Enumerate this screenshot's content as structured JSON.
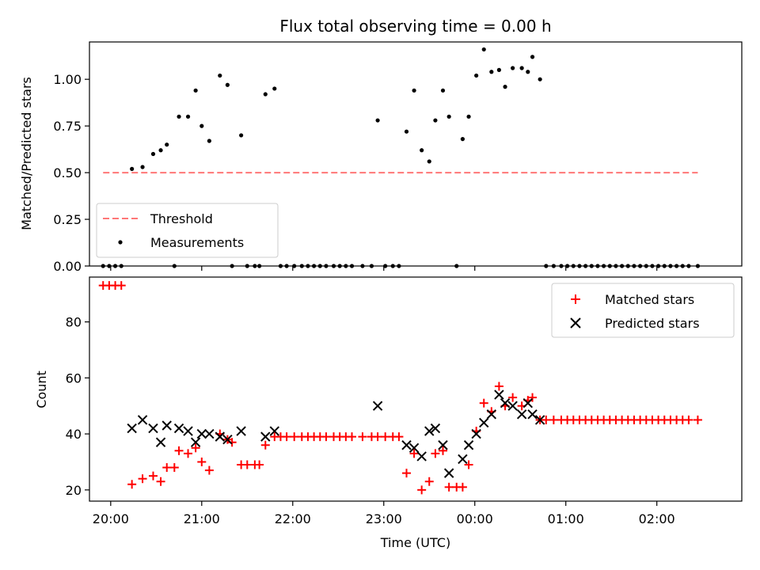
{
  "chart_data": [
    {
      "type": "scatter",
      "title": "Flux total observing time = 0.00 h",
      "ylabel": "Matched/Predicted stars",
      "ylim": [
        0,
        1.2
      ],
      "yticks": [
        0.0,
        0.25,
        0.5,
        0.75,
        1.0
      ],
      "ytick_labels": [
        "0.00",
        "0.25",
        "0.50",
        "0.75",
        "1.00"
      ],
      "xlim": [
        "19:46",
        "02:56"
      ],
      "x_unit": "Time (UTC)",
      "legend_position": "lower-left",
      "threshold": {
        "name": "Threshold",
        "y": 0.5,
        "x_range": [
          "19:55",
          "02:27"
        ],
        "color": "#ff7777",
        "style": "dashed"
      },
      "series": [
        {
          "name": "Measurements",
          "marker": "dot",
          "color": "#000000",
          "points": [
            [
              "19:55",
              0.0
            ],
            [
              "19:59",
              0.0
            ],
            [
              "20:03",
              0.0
            ],
            [
              "20:07",
              0.0
            ],
            [
              "20:14",
              0.52
            ],
            [
              "20:21",
              0.53
            ],
            [
              "20:28",
              0.6
            ],
            [
              "20:33",
              0.62
            ],
            [
              "20:37",
              0.65
            ],
            [
              "20:42",
              0.0
            ],
            [
              "20:45",
              0.8
            ],
            [
              "20:51",
              0.8
            ],
            [
              "20:56",
              0.94
            ],
            [
              "21:00",
              0.75
            ],
            [
              "21:05",
              0.67
            ],
            [
              "21:12",
              1.02
            ],
            [
              "21:17",
              0.97
            ],
            [
              "21:20",
              0.0
            ],
            [
              "21:26",
              0.7
            ],
            [
              "21:30",
              0.0
            ],
            [
              "21:35",
              0.0
            ],
            [
              "21:38",
              0.0
            ],
            [
              "21:42",
              0.92
            ],
            [
              "21:48",
              0.95
            ],
            [
              "21:52",
              0.0
            ],
            [
              "21:56",
              0.0
            ],
            [
              "22:01",
              0.0
            ],
            [
              "22:06",
              0.0
            ],
            [
              "22:10",
              0.0
            ],
            [
              "22:14",
              0.0
            ],
            [
              "22:18",
              0.0
            ],
            [
              "22:22",
              0.0
            ],
            [
              "22:27",
              0.0
            ],
            [
              "22:31",
              0.0
            ],
            [
              "22:35",
              0.0
            ],
            [
              "22:39",
              0.0
            ],
            [
              "22:46",
              0.0
            ],
            [
              "22:52",
              0.0
            ],
            [
              "22:56",
              0.78
            ],
            [
              "23:01",
              0.0
            ],
            [
              "23:06",
              0.0
            ],
            [
              "23:10",
              0.0
            ],
            [
              "23:15",
              0.72
            ],
            [
              "23:20",
              0.94
            ],
            [
              "23:25",
              0.62
            ],
            [
              "23:30",
              0.56
            ],
            [
              "23:34",
              0.78
            ],
            [
              "23:39",
              0.94
            ],
            [
              "23:43",
              0.8
            ],
            [
              "23:48",
              0.0
            ],
            [
              "23:52",
              0.68
            ],
            [
              "23:56",
              0.8
            ],
            [
              "00:01",
              1.02
            ],
            [
              "00:06",
              1.16
            ],
            [
              "00:11",
              1.04
            ],
            [
              "00:16",
              1.05
            ],
            [
              "00:20",
              0.96
            ],
            [
              "00:25",
              1.06
            ],
            [
              "00:31",
              1.06
            ],
            [
              "00:35",
              1.04
            ],
            [
              "00:38",
              1.12
            ],
            [
              "00:43",
              1.0
            ],
            [
              "00:47",
              0.0
            ],
            [
              "00:52",
              0.0
            ],
            [
              "00:57",
              0.0
            ],
            [
              "01:01",
              0.0
            ],
            [
              "01:05",
              0.0
            ],
            [
              "01:09",
              0.0
            ],
            [
              "01:13",
              0.0
            ],
            [
              "01:17",
              0.0
            ],
            [
              "01:21",
              0.0
            ],
            [
              "01:25",
              0.0
            ],
            [
              "01:29",
              0.0
            ],
            [
              "01:33",
              0.0
            ],
            [
              "01:37",
              0.0
            ],
            [
              "01:41",
              0.0
            ],
            [
              "01:45",
              0.0
            ],
            [
              "01:49",
              0.0
            ],
            [
              "01:53",
              0.0
            ],
            [
              "01:57",
              0.0
            ],
            [
              "02:01",
              0.0
            ],
            [
              "02:05",
              0.0
            ],
            [
              "02:09",
              0.0
            ],
            [
              "02:13",
              0.0
            ],
            [
              "02:17",
              0.0
            ],
            [
              "02:21",
              0.0
            ],
            [
              "02:27",
              0.0
            ]
          ]
        }
      ]
    },
    {
      "type": "scatter",
      "ylabel": "Count",
      "xlabel": "Time (UTC)",
      "ylim": [
        16,
        96
      ],
      "yticks": [
        20,
        40,
        60,
        80
      ],
      "ytick_labels": [
        "20",
        "40",
        "60",
        "80"
      ],
      "xlim": [
        "19:46",
        "02:56"
      ],
      "xticks": [
        "20:00",
        "21:00",
        "22:00",
        "23:00",
        "00:00",
        "01:00",
        "02:00"
      ],
      "xtick_labels": [
        "20:00",
        "21:00",
        "22:00",
        "23:00",
        "00:00",
        "01:00",
        "02:00"
      ],
      "legend_position": "top-right",
      "series": [
        {
          "name": "Matched stars",
          "marker": "plus",
          "color": "#ff0000",
          "points": [
            [
              "19:55",
              93
            ],
            [
              "19:59",
              93
            ],
            [
              "20:03",
              93
            ],
            [
              "20:07",
              93
            ],
            [
              "20:14",
              22
            ],
            [
              "20:21",
              24
            ],
            [
              "20:28",
              25
            ],
            [
              "20:33",
              23
            ],
            [
              "20:37",
              28
            ],
            [
              "20:42",
              28
            ],
            [
              "20:45",
              34
            ],
            [
              "20:51",
              33
            ],
            [
              "20:56",
              35
            ],
            [
              "21:00",
              30
            ],
            [
              "21:05",
              27
            ],
            [
              "21:12",
              40
            ],
            [
              "21:17",
              38
            ],
            [
              "21:20",
              37
            ],
            [
              "21:26",
              29
            ],
            [
              "21:30",
              29
            ],
            [
              "21:35",
              29
            ],
            [
              "21:38",
              29
            ],
            [
              "21:42",
              36
            ],
            [
              "21:48",
              39
            ],
            [
              "21:52",
              39
            ],
            [
              "21:56",
              39
            ],
            [
              "22:01",
              39
            ],
            [
              "22:06",
              39
            ],
            [
              "22:10",
              39
            ],
            [
              "22:14",
              39
            ],
            [
              "22:18",
              39
            ],
            [
              "22:22",
              39
            ],
            [
              "22:27",
              39
            ],
            [
              "22:31",
              39
            ],
            [
              "22:35",
              39
            ],
            [
              "22:39",
              39
            ],
            [
              "22:46",
              39
            ],
            [
              "22:52",
              39
            ],
            [
              "22:56",
              39
            ],
            [
              "23:01",
              39
            ],
            [
              "23:06",
              39
            ],
            [
              "23:10",
              39
            ],
            [
              "23:15",
              26
            ],
            [
              "23:20",
              33
            ],
            [
              "23:25",
              20
            ],
            [
              "23:30",
              23
            ],
            [
              "23:34",
              33
            ],
            [
              "23:39",
              34
            ],
            [
              "23:43",
              21
            ],
            [
              "23:48",
              21
            ],
            [
              "23:52",
              21
            ],
            [
              "23:56",
              29
            ],
            [
              "00:01",
              41
            ],
            [
              "00:06",
              51
            ],
            [
              "00:11",
              48
            ],
            [
              "00:16",
              57
            ],
            [
              "00:20",
              50
            ],
            [
              "00:25",
              53
            ],
            [
              "00:31",
              50
            ],
            [
              "00:35",
              52
            ],
            [
              "00:38",
              53
            ],
            [
              "00:43",
              45
            ],
            [
              "00:47",
              45
            ],
            [
              "00:52",
              45
            ],
            [
              "00:57",
              45
            ],
            [
              "01:01",
              45
            ],
            [
              "01:05",
              45
            ],
            [
              "01:09",
              45
            ],
            [
              "01:13",
              45
            ],
            [
              "01:17",
              45
            ],
            [
              "01:21",
              45
            ],
            [
              "01:25",
              45
            ],
            [
              "01:29",
              45
            ],
            [
              "01:33",
              45
            ],
            [
              "01:37",
              45
            ],
            [
              "01:41",
              45
            ],
            [
              "01:45",
              45
            ],
            [
              "01:49",
              45
            ],
            [
              "01:53",
              45
            ],
            [
              "01:57",
              45
            ],
            [
              "02:01",
              45
            ],
            [
              "02:05",
              45
            ],
            [
              "02:09",
              45
            ],
            [
              "02:13",
              45
            ],
            [
              "02:17",
              45
            ],
            [
              "02:21",
              45
            ],
            [
              "02:27",
              45
            ]
          ]
        },
        {
          "name": "Predicted stars",
          "marker": "x",
          "color": "#000000",
          "points": [
            [
              "20:14",
              42
            ],
            [
              "20:21",
              45
            ],
            [
              "20:28",
              42
            ],
            [
              "20:33",
              37
            ],
            [
              "20:37",
              43
            ],
            [
              "20:45",
              42
            ],
            [
              "20:51",
              41
            ],
            [
              "20:56",
              37
            ],
            [
              "21:00",
              40
            ],
            [
              "21:05",
              40
            ],
            [
              "21:12",
              39
            ],
            [
              "21:17",
              38
            ],
            [
              "21:26",
              41
            ],
            [
              "21:42",
              39
            ],
            [
              "21:48",
              41
            ],
            [
              "22:56",
              50
            ],
            [
              "23:15",
              36
            ],
            [
              "23:20",
              35
            ],
            [
              "23:25",
              32
            ],
            [
              "23:30",
              41
            ],
            [
              "23:34",
              42
            ],
            [
              "23:39",
              36
            ],
            [
              "23:43",
              26
            ],
            [
              "23:52",
              31
            ],
            [
              "23:56",
              36
            ],
            [
              "00:01",
              40
            ],
            [
              "00:06",
              44
            ],
            [
              "00:11",
              47
            ],
            [
              "00:16",
              54
            ],
            [
              "00:20",
              51
            ],
            [
              "00:25",
              50
            ],
            [
              "00:31",
              47
            ],
            [
              "00:35",
              51
            ],
            [
              "00:38",
              47
            ],
            [
              "00:43",
              45
            ]
          ]
        }
      ]
    }
  ]
}
